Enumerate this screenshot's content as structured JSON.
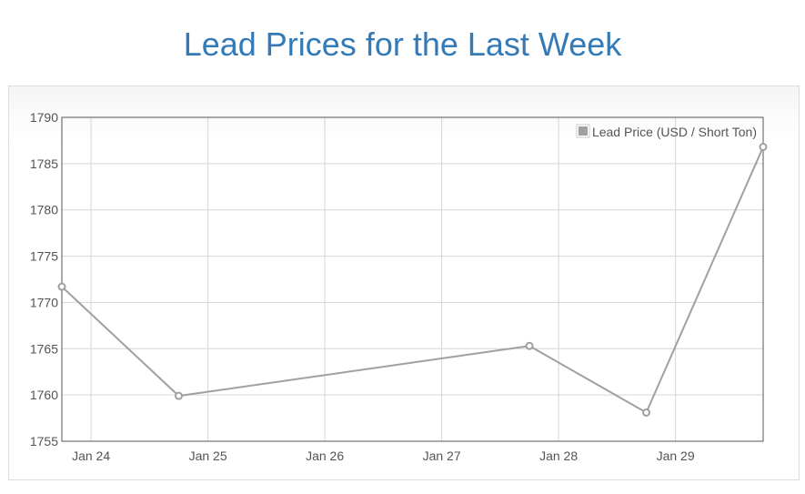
{
  "page": {
    "title": "Lead Prices for the Last Week"
  },
  "chart_data": {
    "type": "line",
    "title": "Lead Prices for the Last Week",
    "xlabel": "",
    "ylabel": "",
    "x_ticks": [
      "Jan 24",
      "Jan 25",
      "Jan 26",
      "Jan 27",
      "Jan 28",
      "Jan 29"
    ],
    "y_ticks": [
      1755,
      1760,
      1765,
      1770,
      1775,
      1780,
      1785,
      1790
    ],
    "xlim": [
      23.75,
      29.75
    ],
    "ylim": [
      1755,
      1790
    ],
    "grid": true,
    "legend_position": "top-right",
    "series": [
      {
        "name": "Lead Price (USD / Short Ton)",
        "color": "#a0a0a0",
        "x": [
          23.75,
          24.75,
          27.75,
          28.75,
          29.75
        ],
        "y": [
          1771.7,
          1759.9,
          1765.3,
          1758.1,
          1786.8
        ]
      }
    ]
  }
}
